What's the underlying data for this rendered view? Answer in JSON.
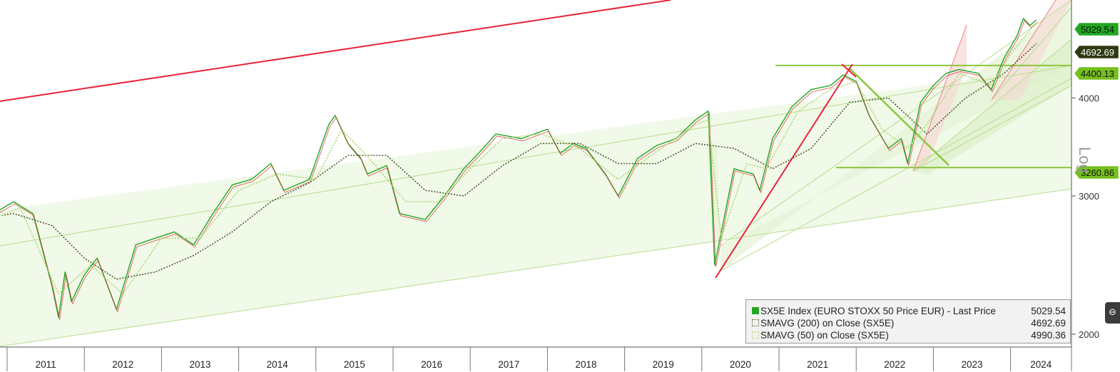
{
  "chart_data": {
    "type": "line",
    "yscale": "log",
    "ylim": [
      1950,
      5400
    ],
    "y_ticks": [
      2000,
      3000,
      4000
    ],
    "y_tick_labels": [
      "2000",
      "3000",
      "4000"
    ],
    "x_tick_labels": [
      "2011",
      "2012",
      "2013",
      "2014",
      "2015",
      "2016",
      "2017",
      "2018",
      "2019",
      "2020",
      "2021",
      "2022",
      "2023",
      "2024"
    ],
    "axis_label": "Log",
    "series": [
      {
        "name": "SX5E Index (EURO STOXX 50 Price EUR) - Last Price",
        "color": "#22a622",
        "x": [
          "2010-06",
          "2010-10",
          "2011-02",
          "2011-05",
          "2011-08",
          "2011-09",
          "2011-10",
          "2011-11",
          "2012-01",
          "2012-03",
          "2012-06",
          "2012-09",
          "2012-12",
          "2013-03",
          "2013-06",
          "2013-09",
          "2013-12",
          "2014-03",
          "2014-06",
          "2014-08",
          "2014-10",
          "2014-12",
          "2015-03",
          "2015-04",
          "2015-06",
          "2015-08",
          "2015-09",
          "2015-12",
          "2016-02",
          "2016-06",
          "2016-09",
          "2016-12",
          "2017-03",
          "2017-05",
          "2017-09",
          "2017-11",
          "2018-01",
          "2018-03",
          "2018-05",
          "2018-07",
          "2018-10",
          "2018-12",
          "2019-03",
          "2019-06",
          "2019-09",
          "2019-12",
          "2020-02",
          "2020-03",
          "2020-06",
          "2020-09",
          "2020-10",
          "2020-12",
          "2021-03",
          "2021-06",
          "2021-09",
          "2021-11",
          "2022-01",
          "2022-03",
          "2022-06",
          "2022-08",
          "2022-09",
          "2022-11",
          "2023-01",
          "2023-03",
          "2023-05",
          "2023-08",
          "2023-10",
          "2023-12",
          "2024-02",
          "2024-03",
          "2024-04",
          "2024-05"
        ],
        "values": [
          2700,
          2820,
          2950,
          2850,
          2300,
          2100,
          2400,
          2200,
          2380,
          2500,
          2150,
          2600,
          2650,
          2700,
          2600,
          2850,
          3100,
          3150,
          3300,
          3050,
          3100,
          3150,
          3700,
          3800,
          3500,
          3350,
          3200,
          3280,
          2850,
          2800,
          3000,
          3250,
          3450,
          3600,
          3550,
          3600,
          3650,
          3400,
          3500,
          3450,
          3200,
          3000,
          3350,
          3480,
          3550,
          3750,
          3850,
          2450,
          3250,
          3200,
          3050,
          3550,
          3900,
          4100,
          4150,
          4280,
          4200,
          3800,
          3450,
          3550,
          3300,
          3950,
          4150,
          4300,
          4350,
          4300,
          4100,
          4500,
          4800,
          5050,
          4950,
          5029.54
        ]
      },
      {
        "name": "SMAVG (200) on Close (SX5E)",
        "color": "#4d5a2a",
        "x": [
          "2010-06",
          "2011-02",
          "2011-08",
          "2012-01",
          "2012-06",
          "2012-12",
          "2013-06",
          "2013-12",
          "2014-06",
          "2014-12",
          "2015-06",
          "2015-12",
          "2016-06",
          "2016-12",
          "2017-06",
          "2017-12",
          "2018-06",
          "2018-12",
          "2019-06",
          "2019-12",
          "2020-06",
          "2020-12",
          "2021-06",
          "2021-12",
          "2022-06",
          "2022-12",
          "2023-06",
          "2023-12",
          "2024-05"
        ],
        "values": [
          2780,
          2850,
          2750,
          2500,
          2350,
          2400,
          2520,
          2700,
          2950,
          3120,
          3380,
          3380,
          3050,
          3000,
          3280,
          3500,
          3500,
          3300,
          3300,
          3500,
          3450,
          3250,
          3450,
          3950,
          4000,
          3600,
          4000,
          4300,
          4692.69
        ]
      },
      {
        "name": "SMAVG (50) on Close (SX5E)",
        "color": "#a9d46e",
        "x": [
          "2010-06",
          "2011-03",
          "2011-09",
          "2012-02",
          "2012-07",
          "2013-01",
          "2013-07",
          "2014-01",
          "2014-07",
          "2015-01",
          "2015-05",
          "2015-10",
          "2016-03",
          "2016-08",
          "2017-01",
          "2017-06",
          "2017-12",
          "2018-06",
          "2018-12",
          "2019-06",
          "2019-12",
          "2020-02",
          "2020-04",
          "2020-08",
          "2020-11",
          "2021-04",
          "2021-09",
          "2022-01",
          "2022-05",
          "2022-09",
          "2022-12",
          "2023-05",
          "2023-10",
          "2024-01",
          "2024-05"
        ],
        "values": [
          2700,
          2900,
          2250,
          2450,
          2250,
          2650,
          2650,
          3050,
          3200,
          3150,
          3650,
          3300,
          2950,
          2950,
          3250,
          3550,
          3600,
          3450,
          3150,
          3420,
          3700,
          3750,
          2650,
          3300,
          3250,
          3850,
          4100,
          4200,
          3650,
          3450,
          3700,
          4300,
          4150,
          4550,
          4990.36
        ]
      }
    ],
    "price_labels": [
      {
        "value": "5029.54",
        "color": "#22a622"
      },
      {
        "value": "4692.69",
        "color": "#2f3a12"
      },
      {
        "value": "4400.13",
        "color": "#76c01f"
      },
      {
        "value": "3260.86",
        "color": "#76c01f"
      }
    ],
    "horizontal_levels": [
      4400.13,
      3260.86
    ],
    "legend": {
      "placement": "bottom-right",
      "rows": [
        {
          "name": "SX5E Index (EURO STOXX 50 Price EUR) - Last Price",
          "value": "5029.54"
        },
        {
          "name": "SMAVG (200)  on Close (SX5E)",
          "value": "4692.69"
        },
        {
          "name": "SMAVG (50)  on Close (SX5E)",
          "value": "4990.36"
        }
      ]
    }
  },
  "side_button_glyph": "⊖"
}
